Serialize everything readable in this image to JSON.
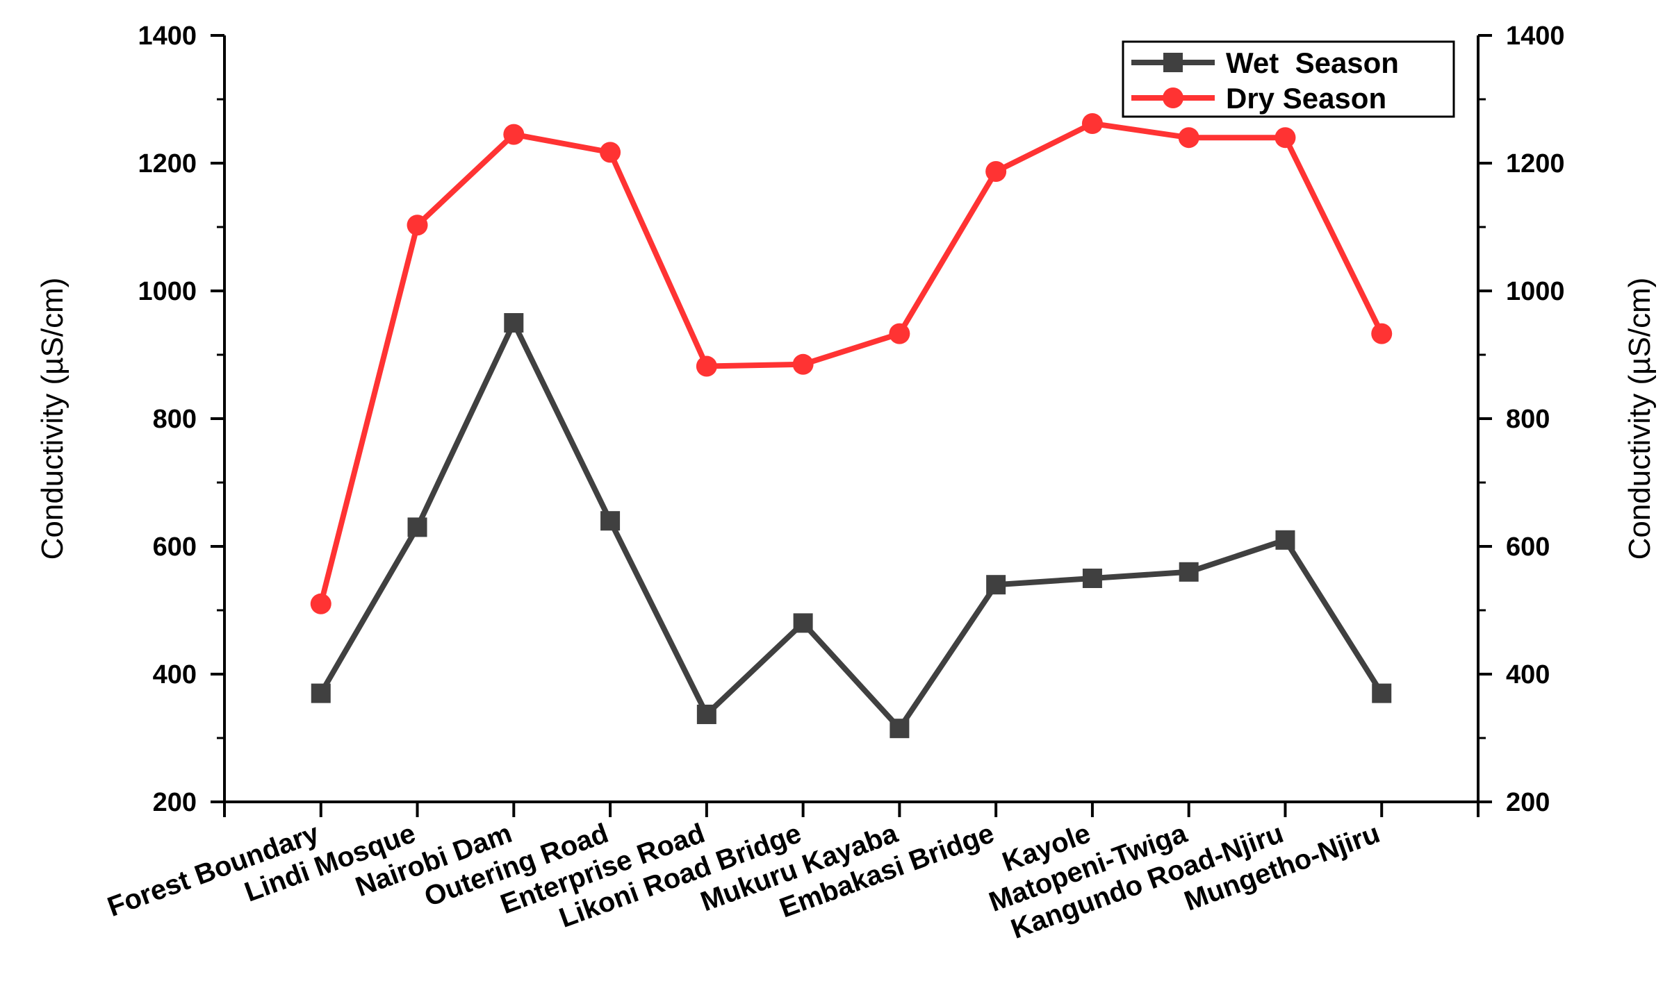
{
  "chart_data": {
    "type": "line",
    "title": "",
    "xlabel": "",
    "ylabel": "Conductivity (µS/cm)",
    "ylabel_right": "Conductivity (µS/cm)",
    "ylim": [
      200,
      1400
    ],
    "yticks": [
      200,
      400,
      600,
      800,
      1000,
      1200,
      1400
    ],
    "grid": false,
    "legend_position": "top-right",
    "categories": [
      "Forest Boundary",
      "Lindi Mosque",
      "Nairobi Dam",
      "Outering Road",
      "Enterprise Road",
      "Likoni Road Bridge",
      "Mukuru Kayaba",
      "Embakasi Bridge",
      "Kayole",
      "Matopeni-Twiga",
      "Kangundo Road-Njiru",
      "Mungetho-Njiru"
    ],
    "series": [
      {
        "name": "Wet  Season",
        "color": "#404040",
        "marker": "square",
        "values": [
          370,
          630,
          950,
          640,
          337,
          480,
          315,
          540,
          550,
          560,
          610,
          370
        ]
      },
      {
        "name": "Dry Season",
        "color": "#ff3333",
        "marker": "circle",
        "values": [
          510,
          1103,
          1245,
          1217,
          882,
          885,
          933,
          1187,
          1262,
          1240,
          1240,
          933
        ]
      }
    ]
  }
}
